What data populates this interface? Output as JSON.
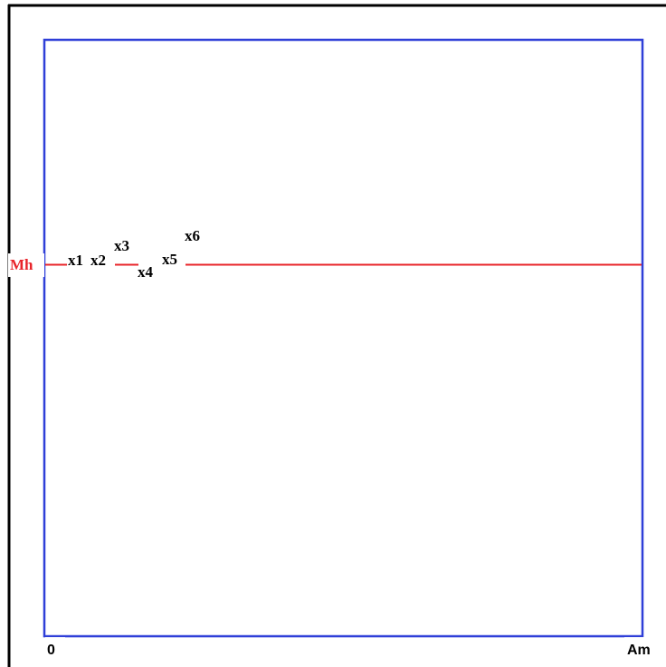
{
  "diagram": {
    "frame_color": "#2f3fd8",
    "line_color": "#e8242a",
    "border_color": "#000000",
    "level_label": "Mh",
    "axis_start_label": "0",
    "axis_end_label": "Am",
    "markers": [
      {
        "label": "x1"
      },
      {
        "label": "x2"
      },
      {
        "label": "x3"
      },
      {
        "label": "x4"
      },
      {
        "label": "x5"
      },
      {
        "label": "x6"
      }
    ]
  }
}
